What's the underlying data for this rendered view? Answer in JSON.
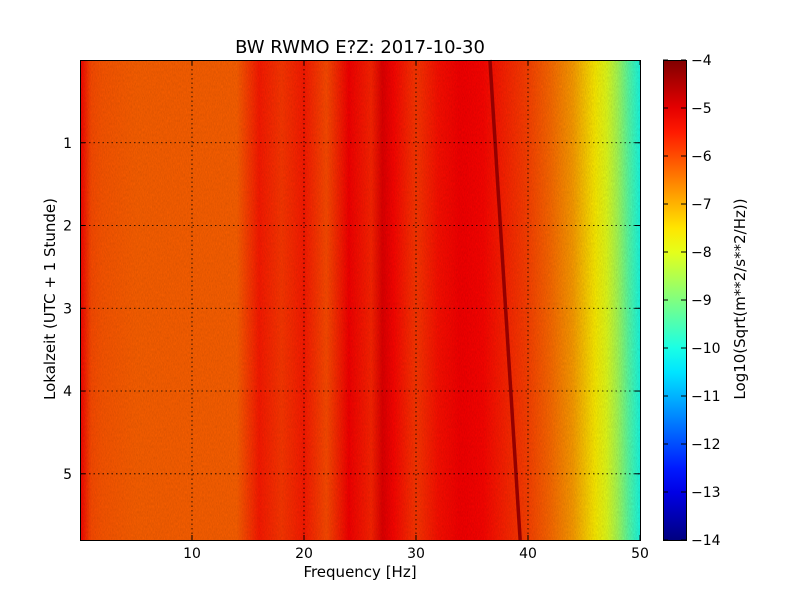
{
  "chart_data": {
    "type": "heatmap",
    "title": "BW RWMO E?Z: 2017-10-30",
    "xlabel": "Frequency [Hz]",
    "ylabel": "Lokalzeit (UTC + 1 Stunde)",
    "xlim": [
      0,
      50
    ],
    "ylim": [
      0,
      5.8
    ],
    "y_inverted": true,
    "x_ticks": [
      10,
      20,
      30,
      40,
      50
    ],
    "x_tick_labels": [
      "10",
      "20",
      "30",
      "40",
      "50"
    ],
    "y_ticks": [
      1,
      2,
      3,
      4,
      5
    ],
    "y_tick_labels": [
      "1",
      "2",
      "3",
      "4",
      "5"
    ],
    "grid": true,
    "colormap": "jet",
    "colorbar": {
      "label": "Log10(Sqrt(m**2/s**2/Hz))",
      "min": -14,
      "max": -4,
      "ticks": [
        -4,
        -5,
        -6,
        -7,
        -8,
        -9,
        -10,
        -11,
        -12,
        -13,
        -14
      ],
      "tick_labels": [
        "−4",
        "−5",
        "−6",
        "−7",
        "−8",
        "−9",
        "−10",
        "−11",
        "−12",
        "−13",
        "−14"
      ]
    },
    "spectral_profile": {
      "frequency_hz": [
        0,
        1,
        2,
        5,
        10,
        14,
        16,
        18,
        20,
        22,
        24,
        26,
        27,
        28,
        30,
        32,
        34,
        36,
        38,
        40,
        42,
        44,
        45,
        46,
        47,
        48,
        49,
        50
      ],
      "log10_amplitude": [
        -5.2,
        -6.0,
        -6.1,
        -6.2,
        -6.2,
        -6.2,
        -5.5,
        -5.8,
        -5.5,
        -6.0,
        -5.2,
        -5.6,
        -5.0,
        -5.3,
        -5.8,
        -5.4,
        -5.2,
        -5.3,
        -5.6,
        -5.9,
        -6.3,
        -6.8,
        -7.2,
        -7.6,
        -8.0,
        -8.6,
        -9.4,
        -10.0
      ]
    },
    "drifting_line": {
      "log10_amplitude": -4.2,
      "points": [
        {
          "time": 0,
          "frequency_hz": 36.6
        },
        {
          "time": 5.8,
          "frequency_hz": 39.3
        }
      ]
    }
  }
}
